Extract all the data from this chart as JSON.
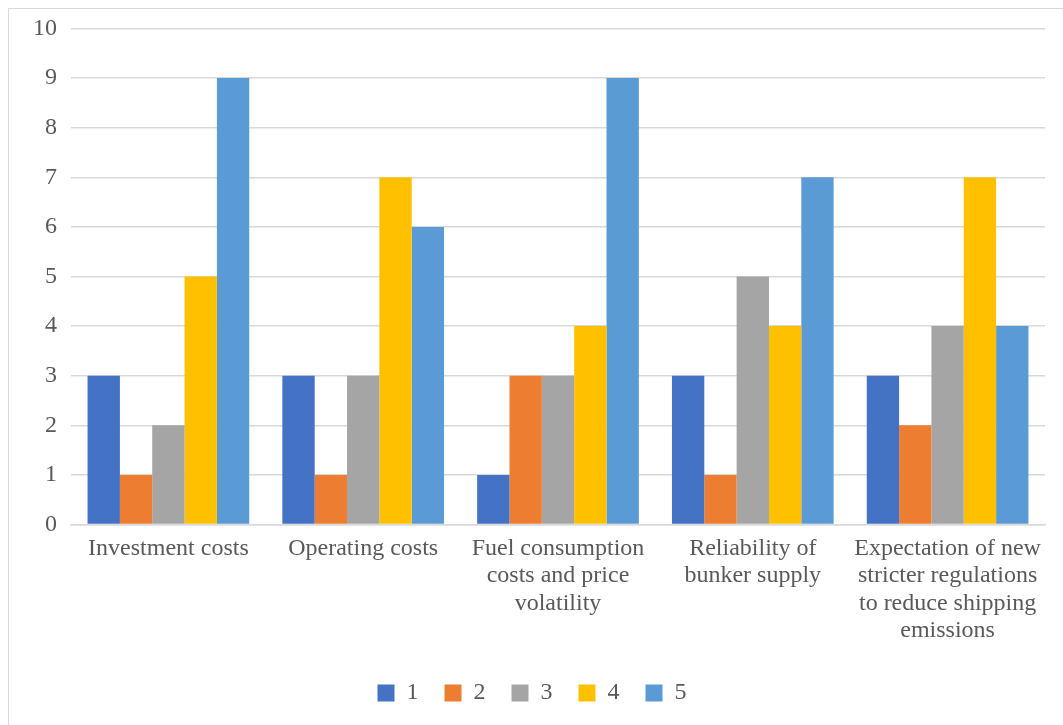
{
  "chart_data": {
    "type": "bar",
    "categories": [
      "Investment costs",
      "Operating costs",
      "Fuel consumption costs and price volatility",
      "Reliability of bunker supply",
      "Expectation of new stricter regulations to reduce shipping emissions"
    ],
    "series": [
      {
        "name": "1",
        "color": "#4472c4",
        "values": [
          3,
          3,
          1,
          3,
          3
        ]
      },
      {
        "name": "2",
        "color": "#ed7d31",
        "values": [
          1,
          1,
          3,
          1,
          2
        ]
      },
      {
        "name": "3",
        "color": "#a5a5a5",
        "values": [
          2,
          3,
          3,
          5,
          4
        ]
      },
      {
        "name": "4",
        "color": "#ffc000",
        "values": [
          5,
          7,
          4,
          4,
          7
        ]
      },
      {
        "name": "5",
        "color": "#5b9bd5",
        "values": [
          9,
          6,
          9,
          7,
          4
        ]
      }
    ],
    "ylim": [
      0,
      10
    ],
    "yticks": [
      0,
      1,
      2,
      3,
      4,
      5,
      6,
      7,
      8,
      9,
      10
    ],
    "grid": "y",
    "legend": "bottom"
  }
}
